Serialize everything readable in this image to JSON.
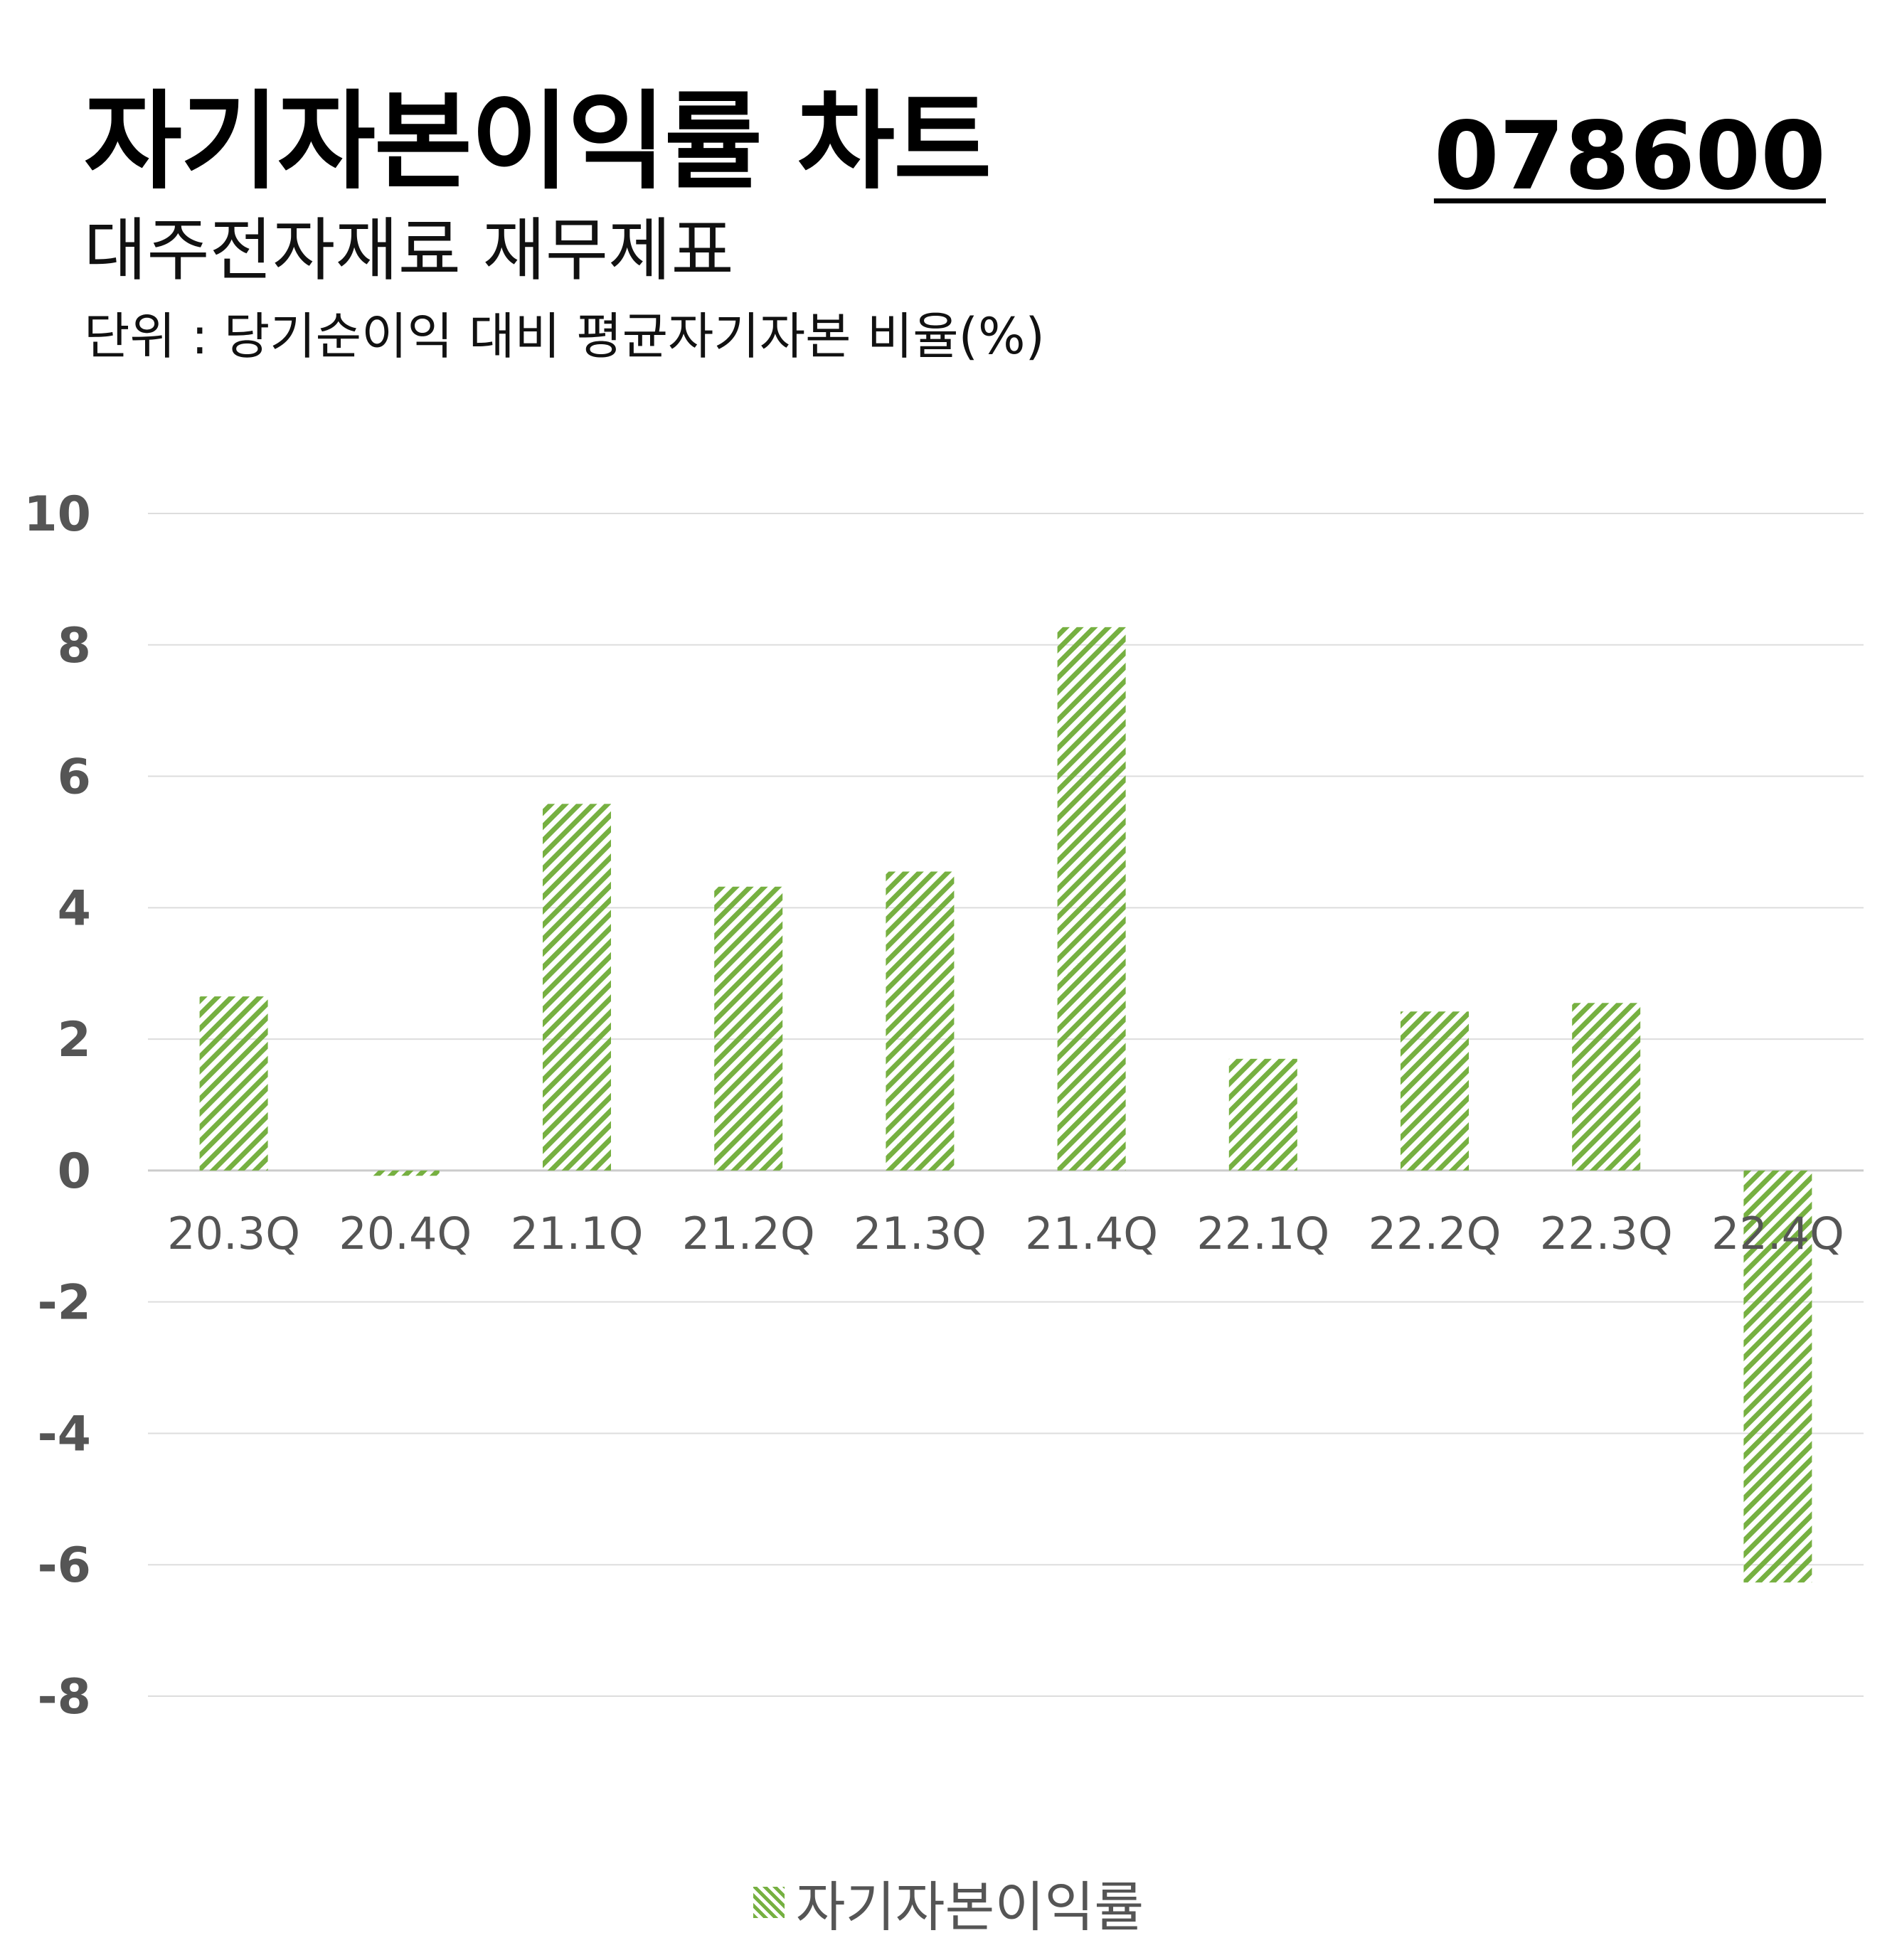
{
  "header": {
    "title": "자기자본이익률 차트",
    "code": "078600",
    "subtitle": "대주전자재료 재무제표",
    "unit": "단위 : 당기순이익 대비 평균자기자본 비율(%)"
  },
  "colors": {
    "bar": "#76b041",
    "grid": "#dddddd",
    "axis_text": "#555555"
  },
  "chart_data": {
    "type": "bar",
    "categories": [
      "20.3Q",
      "20.4Q",
      "21.1Q",
      "21.2Q",
      "21.3Q",
      "21.4Q",
      "22.1Q",
      "22.2Q",
      "22.3Q",
      "22.4Q"
    ],
    "series": [
      {
        "name": "자기자본이익률",
        "values": [
          2.65,
          -0.08,
          5.58,
          4.32,
          4.55,
          8.27,
          1.7,
          2.42,
          2.55,
          -6.27
        ]
      }
    ],
    "ylim": [
      -8,
      10
    ],
    "yticks": [
      "10",
      "8",
      "6",
      "4",
      "2",
      "0",
      "-2",
      "-4",
      "-6",
      "-8"
    ],
    "ytick_values": [
      10,
      8,
      6,
      4,
      2,
      0,
      -2,
      -4,
      -6,
      -8
    ],
    "grid": true,
    "bar_pattern": "diagonal-hatch",
    "legend_position": "bottom"
  }
}
